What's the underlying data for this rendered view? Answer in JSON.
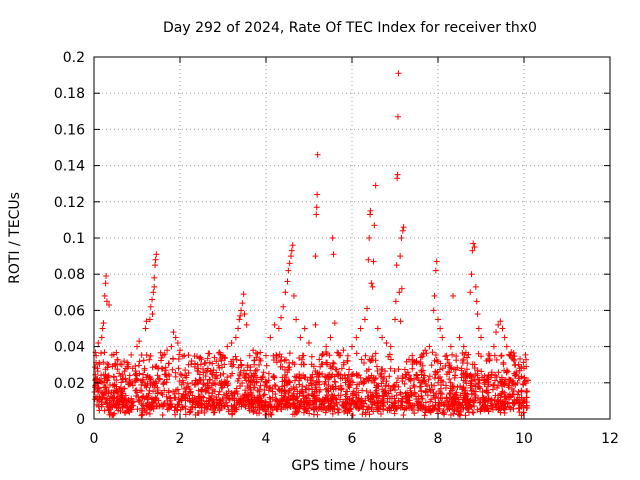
{
  "chart_data": {
    "type": "scatter",
    "title": "Day 292 of 2024, Rate Of TEC Index for receiver thx0",
    "xlabel": "GPS time / hours",
    "ylabel": "ROTI / TECUs",
    "xlim": [
      0,
      12
    ],
    "ylim": [
      0,
      0.2
    ],
    "xticks": [
      0,
      2,
      4,
      6,
      8,
      10,
      12
    ],
    "yticks": [
      0,
      0.02,
      0.04,
      0.06,
      0.08,
      0.1,
      0.12,
      0.14,
      0.16,
      0.18,
      0.2
    ],
    "grid": true,
    "marker": "+",
    "color": "#ff0000",
    "data_range_hours": [
      0,
      10.1
    ],
    "baseline_range": [
      0.005,
      0.025
    ],
    "series": [
      {
        "name": "thx0",
        "points": [
          [
            0.05,
            0.035
          ],
          [
            0.08,
            0.028
          ],
          [
            0.1,
            0.042
          ],
          [
            0.12,
            0.031
          ],
          [
            0.2,
            0.05
          ],
          [
            0.22,
            0.053
          ],
          [
            0.25,
            0.068
          ],
          [
            0.27,
            0.075
          ],
          [
            0.28,
            0.079
          ],
          [
            0.3,
            0.065
          ],
          [
            0.35,
            0.063
          ],
          [
            0.18,
            0.045
          ],
          [
            0.5,
            0.03
          ],
          [
            0.7,
            0.032
          ],
          [
            0.9,
            0.028
          ],
          [
            1.0,
            0.04
          ],
          [
            1.05,
            0.043
          ],
          [
            1.2,
            0.05
          ],
          [
            1.22,
            0.054
          ],
          [
            1.3,
            0.055
          ],
          [
            1.32,
            0.062
          ],
          [
            1.35,
            0.066
          ],
          [
            1.38,
            0.07
          ],
          [
            1.4,
            0.078
          ],
          [
            1.42,
            0.085
          ],
          [
            1.43,
            0.088
          ],
          [
            1.45,
            0.091
          ],
          [
            1.4,
            0.073
          ],
          [
            1.36,
            0.058
          ],
          [
            1.6,
            0.035
          ],
          [
            1.7,
            0.038
          ],
          [
            1.8,
            0.04
          ],
          [
            1.85,
            0.048
          ],
          [
            1.9,
            0.045
          ],
          [
            1.95,
            0.042
          ],
          [
            2.0,
            0.038
          ],
          [
            2.1,
            0.035
          ],
          [
            2.2,
            0.03
          ],
          [
            2.5,
            0.033
          ],
          [
            2.6,
            0.031
          ],
          [
            2.8,
            0.034
          ],
          [
            3.0,
            0.035
          ],
          [
            3.1,
            0.04
          ],
          [
            3.2,
            0.042
          ],
          [
            3.3,
            0.045
          ],
          [
            3.35,
            0.05
          ],
          [
            3.38,
            0.055
          ],
          [
            3.4,
            0.057
          ],
          [
            3.42,
            0.06
          ],
          [
            3.45,
            0.064
          ],
          [
            3.48,
            0.069
          ],
          [
            3.5,
            0.058
          ],
          [
            3.55,
            0.052
          ],
          [
            3.7,
            0.038
          ],
          [
            3.8,
            0.036
          ],
          [
            4.0,
            0.035
          ],
          [
            4.1,
            0.045
          ],
          [
            4.2,
            0.052
          ],
          [
            4.3,
            0.05
          ],
          [
            4.35,
            0.056
          ],
          [
            4.4,
            0.062
          ],
          [
            4.45,
            0.07
          ],
          [
            4.5,
            0.076
          ],
          [
            4.52,
            0.082
          ],
          [
            4.55,
            0.086
          ],
          [
            4.58,
            0.09
          ],
          [
            4.6,
            0.093
          ],
          [
            4.62,
            0.096
          ],
          [
            4.65,
            0.068
          ],
          [
            4.7,
            0.055
          ],
          [
            4.8,
            0.045
          ],
          [
            4.9,
            0.05
          ],
          [
            5.0,
            0.042
          ],
          [
            5.15,
            0.09
          ],
          [
            5.17,
            0.113
          ],
          [
            5.18,
            0.117
          ],
          [
            5.19,
            0.124
          ],
          [
            5.2,
            0.146
          ],
          [
            5.15,
            0.052
          ],
          [
            5.3,
            0.035
          ],
          [
            5.4,
            0.04
          ],
          [
            5.5,
            0.045
          ],
          [
            5.55,
            0.1
          ],
          [
            5.57,
            0.091
          ],
          [
            5.6,
            0.053
          ],
          [
            5.7,
            0.035
          ],
          [
            5.8,
            0.038
          ],
          [
            5.9,
            0.032
          ],
          [
            6.0,
            0.04
          ],
          [
            6.1,
            0.045
          ],
          [
            6.2,
            0.05
          ],
          [
            6.3,
            0.055
          ],
          [
            6.35,
            0.061
          ],
          [
            6.38,
            0.088
          ],
          [
            6.4,
            0.1
          ],
          [
            6.42,
            0.113
          ],
          [
            6.43,
            0.115
          ],
          [
            6.45,
            0.075
          ],
          [
            6.48,
            0.073
          ],
          [
            6.5,
            0.087
          ],
          [
            6.52,
            0.107
          ],
          [
            6.55,
            0.129
          ],
          [
            6.6,
            0.05
          ],
          [
            6.7,
            0.045
          ],
          [
            6.8,
            0.042
          ],
          [
            6.9,
            0.04
          ],
          [
            7.0,
            0.055
          ],
          [
            7.02,
            0.065
          ],
          [
            7.04,
            0.085
          ],
          [
            7.05,
            0.133
          ],
          [
            7.06,
            0.135
          ],
          [
            7.07,
            0.167
          ],
          [
            7.08,
            0.191
          ],
          [
            7.1,
            0.07
          ],
          [
            7.12,
            0.09
          ],
          [
            7.15,
            0.1
          ],
          [
            7.18,
            0.104
          ],
          [
            7.2,
            0.106
          ],
          [
            7.13,
            0.054
          ],
          [
            7.16,
            0.072
          ],
          [
            7.4,
            0.035
          ],
          [
            7.5,
            0.032
          ],
          [
            7.6,
            0.034
          ],
          [
            7.7,
            0.038
          ],
          [
            7.8,
            0.04
          ],
          [
            7.9,
            0.06
          ],
          [
            7.92,
            0.068
          ],
          [
            7.95,
            0.082
          ],
          [
            7.97,
            0.087
          ],
          [
            8.0,
            0.055
          ],
          [
            8.05,
            0.05
          ],
          [
            8.1,
            0.045
          ],
          [
            8.2,
            0.035
          ],
          [
            8.3,
            0.04
          ],
          [
            8.35,
            0.068
          ],
          [
            8.5,
            0.045
          ],
          [
            8.6,
            0.04
          ],
          [
            8.75,
            0.07
          ],
          [
            8.78,
            0.08
          ],
          [
            8.8,
            0.093
          ],
          [
            8.82,
            0.097
          ],
          [
            8.85,
            0.095
          ],
          [
            8.88,
            0.073
          ],
          [
            8.9,
            0.065
          ],
          [
            8.92,
            0.058
          ],
          [
            8.95,
            0.05
          ],
          [
            9.0,
            0.045
          ],
          [
            9.2,
            0.035
          ],
          [
            9.3,
            0.04
          ],
          [
            9.35,
            0.048
          ],
          [
            9.4,
            0.052
          ],
          [
            9.45,
            0.054
          ],
          [
            9.5,
            0.05
          ],
          [
            9.55,
            0.045
          ],
          [
            9.6,
            0.04
          ],
          [
            9.7,
            0.035
          ],
          [
            9.8,
            0.03
          ],
          [
            9.9,
            0.028
          ],
          [
            10.0,
            0.028
          ],
          [
            10.05,
            0.029
          ]
        ]
      }
    ]
  }
}
